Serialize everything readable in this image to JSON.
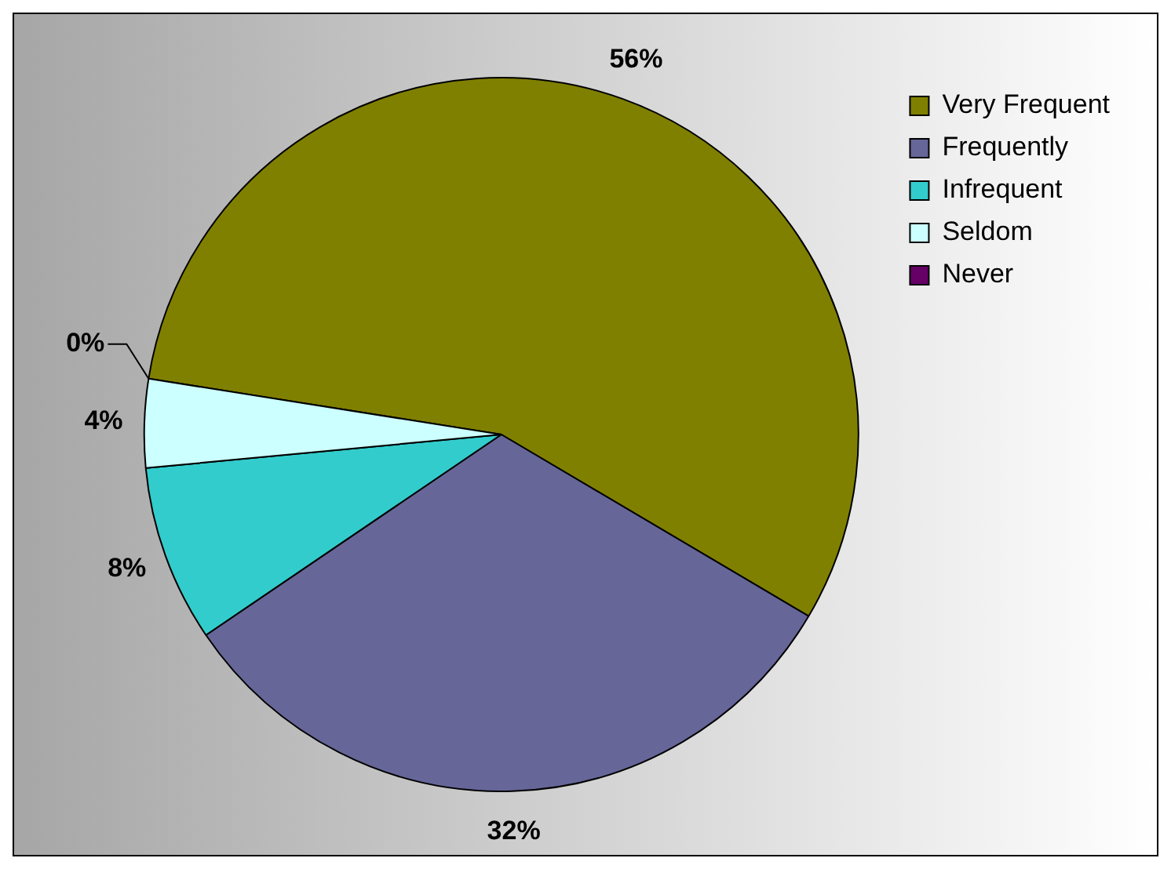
{
  "chart_data": {
    "type": "pie",
    "categories": [
      "Very Frequent",
      "Frequently",
      "Infrequent",
      "Seldom",
      "Never"
    ],
    "values": [
      56,
      32,
      8,
      4,
      0
    ],
    "colors": [
      "#808000",
      "#666699",
      "#33cccc",
      "#ccffff",
      "#660066"
    ],
    "value_labels": [
      "56%",
      "32%",
      "8%",
      "4%",
      "0%"
    ],
    "legend": "top right"
  }
}
